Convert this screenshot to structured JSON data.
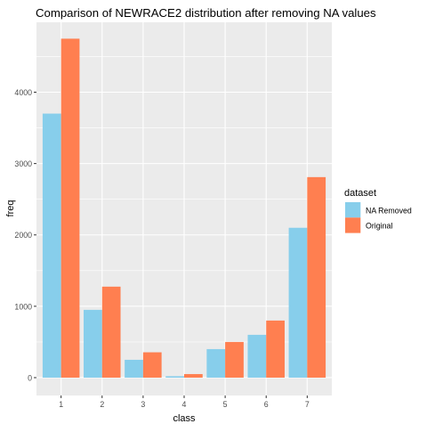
{
  "chart_data": {
    "type": "bar",
    "title": "Comparison of NEWRACE2 distribution after removing NA values",
    "xlabel": "class",
    "ylabel": "freq",
    "categories": [
      "1",
      "2",
      "3",
      "4",
      "5",
      "6",
      "7"
    ],
    "series": [
      {
        "name": "NA Removed",
        "values": [
          3700,
          950,
          250,
          20,
          400,
          600,
          2100
        ]
      },
      {
        "name": "Original",
        "values": [
          4750,
          1275,
          355,
          50,
          500,
          800,
          2810
        ]
      }
    ],
    "ylim": [
      -250,
      4980
    ],
    "yticks": [
      0,
      1000,
      2000,
      3000,
      4000
    ],
    "grid": true,
    "legend": {
      "title": "dataset",
      "position": "right"
    },
    "colors": {
      "NA Removed": "#87CEEB",
      "Original": "#FF7F50",
      "panel_bg": "#EBEBEB",
      "grid_major": "#FFFFFF",
      "text": "#000000",
      "tick_text": "#4D4D4D"
    }
  }
}
